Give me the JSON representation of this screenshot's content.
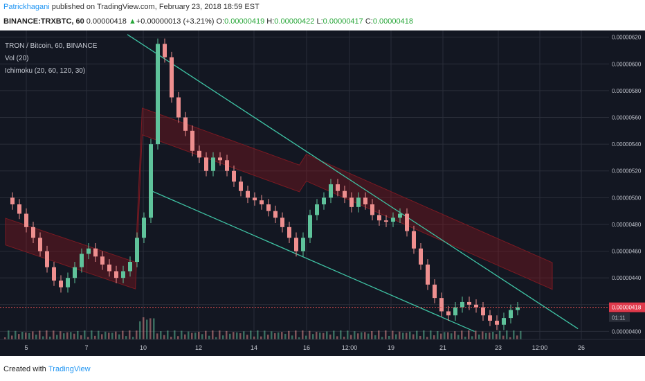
{
  "header": {
    "author": "Patrickhagani",
    "published_text": " published on TradingView.com, February 23, 2018 18:59 EST",
    "symbol": "BINANCE:TRXBTC, 60",
    "last": "0.00000418",
    "change": "+0.00000013 (+3.21%)",
    "o_label": "O:",
    "o_val": "0.00000419",
    "h_label": "H:",
    "h_val": "0.00000422",
    "l_label": "L:",
    "l_val": "0.00000417",
    "c_label": "C:",
    "c_val": "0.00000418",
    "arrow": "▲"
  },
  "legend": {
    "line1": "TRON / Bitcoin, 60, BINANCE",
    "line2": "Vol (20)",
    "line3": "Ichimoku (20, 60, 120, 30)"
  },
  "footer": {
    "created_with": "Created with",
    "brand": "TradingView"
  },
  "chart_data": {
    "type": "candlestick",
    "title": "TRON / Bitcoin, 60, BINANCE",
    "indicators": [
      "Vol (20)",
      "Ichimoku (20, 60, 120, 30)"
    ],
    "x_ticks": [
      "5",
      "7",
      "10",
      "12",
      "14",
      "16",
      "12:00",
      "19",
      "21",
      "23",
      "12:00",
      "26"
    ],
    "y_ticks": [
      "0.00000620",
      "0.00000600",
      "0.00000580",
      "0.00000560",
      "0.00000540",
      "0.00000520",
      "0.00000500",
      "0.00000480",
      "0.00000460",
      "0.00000440",
      "0.00000420",
      "0.00000400"
    ],
    "y_values": [
      620,
      600,
      580,
      560,
      540,
      520,
      500,
      480,
      460,
      440,
      420,
      400
    ],
    "ylim": [
      394,
      625
    ],
    "current_price_label": "0.00000418",
    "current_price": 418,
    "countdown_label": "01:11",
    "close_path": [
      [
        0,
        500
      ],
      [
        1,
        495
      ],
      [
        2,
        488
      ],
      [
        3,
        478
      ],
      [
        4,
        470
      ],
      [
        5,
        460
      ],
      [
        6,
        448
      ],
      [
        7,
        438
      ],
      [
        8,
        433
      ],
      [
        9,
        440
      ],
      [
        10,
        448
      ],
      [
        11,
        458
      ],
      [
        12,
        462
      ],
      [
        13,
        456
      ],
      [
        14,
        450
      ],
      [
        15,
        445
      ],
      [
        16,
        440
      ],
      [
        17,
        445
      ],
      [
        18,
        452
      ],
      [
        19,
        470
      ],
      [
        20,
        485
      ],
      [
        21,
        540
      ],
      [
        22,
        615
      ],
      [
        23,
        605
      ],
      [
        24,
        575
      ],
      [
        25,
        560
      ],
      [
        26,
        550
      ],
      [
        27,
        535
      ],
      [
        28,
        530
      ],
      [
        29,
        520
      ],
      [
        30,
        530
      ],
      [
        31,
        528
      ],
      [
        32,
        520
      ],
      [
        33,
        512
      ],
      [
        34,
        505
      ],
      [
        35,
        500
      ],
      [
        36,
        498
      ],
      [
        37,
        495
      ],
      [
        38,
        490
      ],
      [
        39,
        485
      ],
      [
        40,
        478
      ],
      [
        41,
        470
      ],
      [
        42,
        460
      ],
      [
        43,
        470
      ],
      [
        44,
        487
      ],
      [
        45,
        495
      ],
      [
        46,
        500
      ],
      [
        47,
        510
      ],
      [
        48,
        505
      ],
      [
        49,
        500
      ],
      [
        50,
        493
      ],
      [
        51,
        500
      ],
      [
        52,
        495
      ],
      [
        53,
        487
      ],
      [
        54,
        483
      ],
      [
        55,
        482
      ],
      [
        56,
        485
      ],
      [
        57,
        488
      ],
      [
        58,
        475
      ],
      [
        59,
        462
      ],
      [
        60,
        450
      ],
      [
        61,
        435
      ],
      [
        62,
        425
      ],
      [
        63,
        415
      ],
      [
        64,
        412
      ],
      [
        65,
        418
      ],
      [
        66,
        422
      ],
      [
        67,
        420
      ],
      [
        68,
        418
      ],
      [
        69,
        412
      ],
      [
        70,
        408
      ],
      [
        71,
        405
      ],
      [
        72,
        410
      ],
      [
        73,
        416
      ],
      [
        74,
        418
      ]
    ],
    "trendlines": [
      {
        "from": [
          2.0,
          622
        ],
        "to": [
          9.4,
          402
        ]
      },
      {
        "from": [
          2.4,
          505
        ],
        "to": [
          7.7,
          400
        ]
      }
    ]
  }
}
